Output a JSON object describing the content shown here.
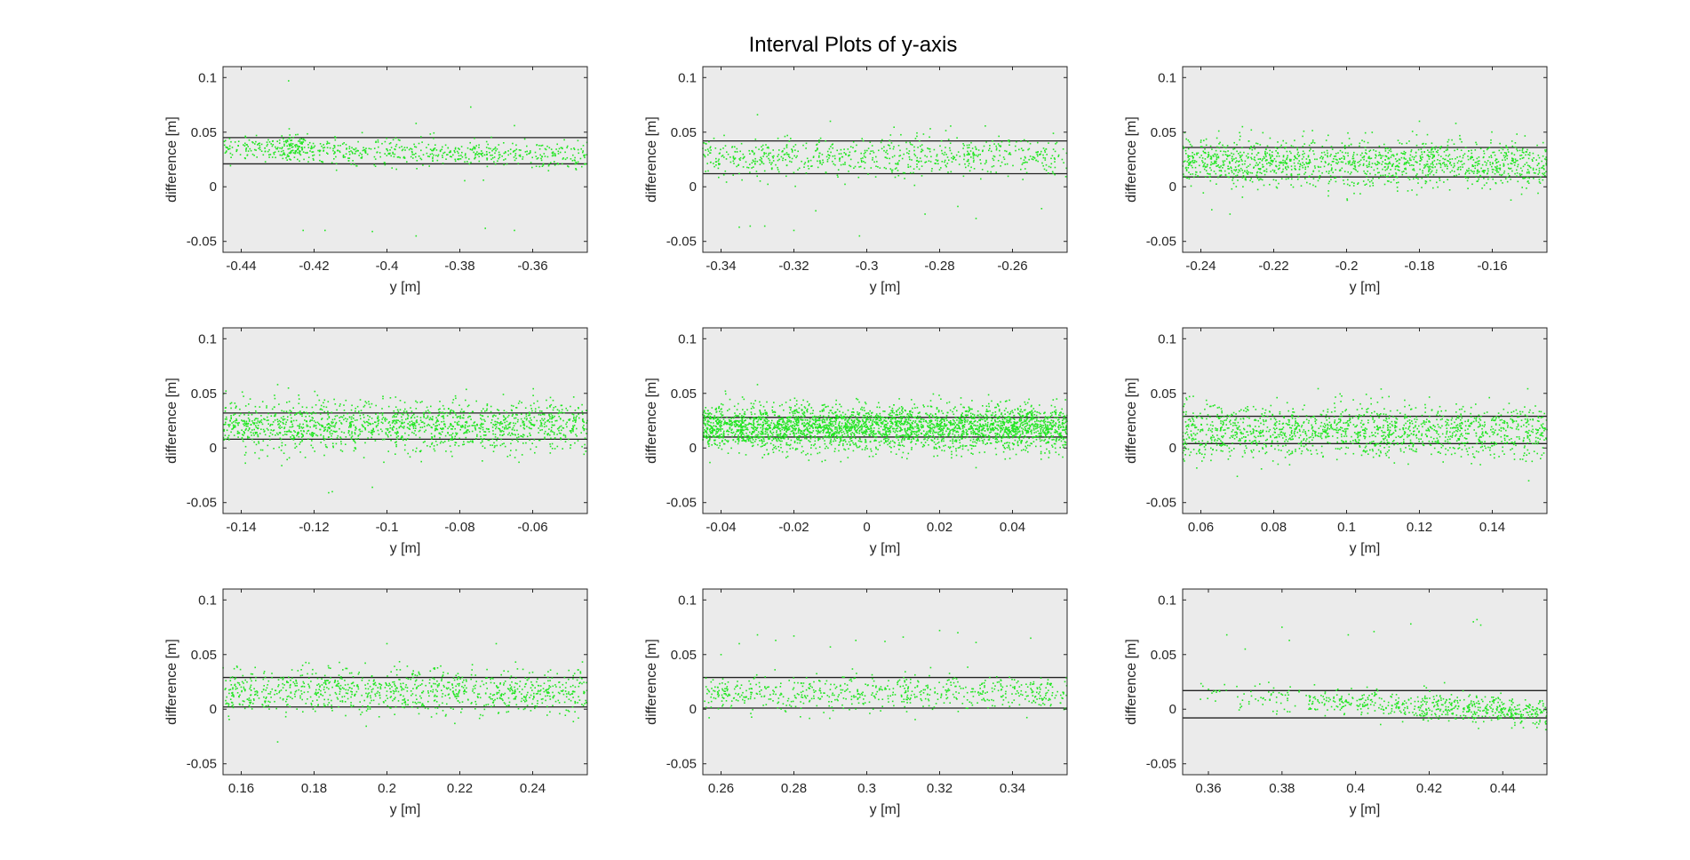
{
  "figure_title": "Interval Plots of y-axis",
  "colors": {
    "plot_background": "#ebebeb",
    "points": "#22e622",
    "band_lines": "#222222",
    "axis": "#262626"
  },
  "chart_data": [
    {
      "type": "scatter",
      "xlabel": "y [m]",
      "ylabel": "difference [m]",
      "xlim": [
        -0.445,
        -0.345
      ],
      "ylim": [
        -0.06,
        0.11
      ],
      "xticks": [
        -0.44,
        -0.42,
        -0.4,
        -0.38,
        -0.36
      ],
      "xtick_labels": [
        "-0.44",
        "-0.42",
        "-0.4",
        "-0.38",
        "-0.36"
      ],
      "yticks": [
        -0.05,
        0,
        0.05,
        0.1
      ],
      "ytick_labels": [
        "-0.05",
        "0",
        "0.05",
        "0.1"
      ],
      "band": [
        0.021,
        0.045
      ],
      "scatter": {
        "count": 650,
        "center_start": 0.036,
        "center_end": 0.028,
        "spread": 0.006,
        "x_density": "uniform"
      },
      "sparse_outliers": [
        [
          -0.427,
          0.097
        ],
        [
          -0.423,
          -0.04
        ],
        [
          -0.417,
          -0.04
        ],
        [
          -0.404,
          -0.041
        ],
        [
          -0.392,
          -0.045
        ],
        [
          -0.377,
          0.073
        ],
        [
          -0.373,
          -0.038
        ],
        [
          -0.365,
          -0.04
        ],
        [
          -0.392,
          0.058
        ],
        [
          -0.365,
          0.056
        ]
      ],
      "cluster": {
        "x": -0.426,
        "y": 0.038,
        "count": 70,
        "spread_x": 0.002,
        "spread_y": 0.005
      },
      "grid": false
    },
    {
      "type": "scatter",
      "xlabel": "y [m]",
      "ylabel": "difference [m]",
      "xlim": [
        -0.345,
        -0.245
      ],
      "ylim": [
        -0.06,
        0.11
      ],
      "xticks": [
        -0.34,
        -0.32,
        -0.3,
        -0.28,
        -0.26
      ],
      "xtick_labels": [
        "-0.34",
        "-0.32",
        "-0.3",
        "-0.28",
        "-0.26"
      ],
      "yticks": [
        -0.05,
        0,
        0.05,
        0.1
      ],
      "ytick_labels": [
        "-0.05",
        "0",
        "0.05",
        "0.1"
      ],
      "band": [
        0.012,
        0.042
      ],
      "scatter": {
        "count": 700,
        "center_start": 0.027,
        "center_end": 0.028,
        "spread": 0.009,
        "x_density": "uniform"
      },
      "sparse_outliers": [
        [
          -0.335,
          -0.037
        ],
        [
          -0.332,
          -0.036
        ],
        [
          -0.328,
          -0.036
        ],
        [
          -0.32,
          -0.04
        ],
        [
          -0.314,
          -0.022
        ],
        [
          -0.302,
          -0.045
        ],
        [
          -0.284,
          -0.025
        ],
        [
          -0.275,
          -0.018
        ],
        [
          -0.27,
          -0.029
        ],
        [
          -0.252,
          -0.02
        ],
        [
          -0.33,
          0.066
        ],
        [
          -0.31,
          0.06
        ]
      ],
      "grid": false
    },
    {
      "type": "scatter",
      "xlabel": "y [m]",
      "ylabel": "difference [m]",
      "xlim": [
        -0.245,
        -0.145
      ],
      "ylim": [
        -0.06,
        0.11
      ],
      "xticks": [
        -0.24,
        -0.22,
        -0.2,
        -0.18,
        -0.16
      ],
      "xtick_labels": [
        "-0.24",
        "-0.22",
        "-0.2",
        "-0.18",
        "-0.16"
      ],
      "yticks": [
        -0.05,
        0,
        0.05,
        0.1
      ],
      "ytick_labels": [
        "-0.05",
        "0",
        "0.05",
        "0.1"
      ],
      "band": [
        0.009,
        0.036
      ],
      "scatter": {
        "count": 1400,
        "center_start": 0.024,
        "center_end": 0.02,
        "spread": 0.011,
        "x_density": "uniform"
      },
      "sparse_outliers": [
        [
          -0.237,
          -0.021
        ],
        [
          -0.232,
          -0.025
        ],
        [
          -0.18,
          0.06
        ],
        [
          -0.17,
          0.058
        ]
      ],
      "grid": false
    },
    {
      "type": "scatter",
      "xlabel": "y [m]",
      "ylabel": "difference [m]",
      "xlim": [
        -0.145,
        -0.045
      ],
      "ylim": [
        -0.06,
        0.11
      ],
      "xticks": [
        -0.14,
        -0.12,
        -0.1,
        -0.08,
        -0.06
      ],
      "xtick_labels": [
        "-0.14",
        "-0.12",
        "-0.1",
        "-0.08",
        "-0.06"
      ],
      "yticks": [
        -0.05,
        0,
        0.05,
        0.1
      ],
      "ytick_labels": [
        "-0.05",
        "0",
        "0.05",
        "0.1"
      ],
      "band": [
        0.008,
        0.032
      ],
      "scatter": {
        "count": 1500,
        "center_start": 0.02,
        "center_end": 0.021,
        "spread": 0.011,
        "x_density": "uniform"
      },
      "sparse_outliers": [
        [
          -0.116,
          -0.041
        ],
        [
          -0.115,
          -0.04
        ],
        [
          -0.104,
          -0.036
        ],
        [
          -0.13,
          0.058
        ]
      ],
      "grid": false
    },
    {
      "type": "scatter",
      "xlabel": "y [m]",
      "ylabel": "difference [m]",
      "xlim": [
        -0.045,
        0.055
      ],
      "ylim": [
        -0.06,
        0.11
      ],
      "xticks": [
        -0.04,
        -0.02,
        0,
        0.02,
        0.04
      ],
      "xtick_labels": [
        "-0.04",
        "-0.02",
        "0",
        "0.02",
        "0.04"
      ],
      "yticks": [
        -0.05,
        0,
        0.05,
        0.1
      ],
      "ytick_labels": [
        "-0.05",
        "0",
        "0.05",
        "0.1"
      ],
      "band": [
        0.01,
        0.028
      ],
      "scatter": {
        "count": 3200,
        "center_start": 0.019,
        "center_end": 0.019,
        "spread": 0.01,
        "x_density": "uniform"
      },
      "sparse_outliers": [
        [
          -0.03,
          0.058
        ],
        [
          0.03,
          -0.018
        ]
      ],
      "grid": false
    },
    {
      "type": "scatter",
      "xlabel": "y [m]",
      "ylabel": "difference [m]",
      "xlim": [
        0.055,
        0.155
      ],
      "ylim": [
        -0.06,
        0.11
      ],
      "xticks": [
        0.06,
        0.08,
        0.1,
        0.12,
        0.14
      ],
      "xtick_labels": [
        "0.06",
        "0.08",
        "0.1",
        "0.12",
        "0.14"
      ],
      "yticks": [
        -0.05,
        0,
        0.05,
        0.1
      ],
      "ytick_labels": [
        "-0.05",
        "0",
        "0.05",
        "0.1"
      ],
      "band": [
        0.004,
        0.029
      ],
      "scatter": {
        "count": 1500,
        "center_start": 0.016,
        "center_end": 0.016,
        "spread": 0.012,
        "x_density": "uniform"
      },
      "sparse_outliers": [
        [
          0.07,
          -0.026
        ],
        [
          0.15,
          -0.03
        ]
      ],
      "grid": false
    },
    {
      "type": "scatter",
      "xlabel": "y [m]",
      "ylabel": "difference [m]",
      "xlim": [
        0.155,
        0.255
      ],
      "ylim": [
        -0.06,
        0.11
      ],
      "xticks": [
        0.16,
        0.18,
        0.2,
        0.22,
        0.24
      ],
      "xtick_labels": [
        "0.16",
        "0.18",
        "0.2",
        "0.22",
        "0.24"
      ],
      "yticks": [
        -0.05,
        0,
        0.05,
        0.1
      ],
      "ytick_labels": [
        "-0.05",
        "0",
        "0.05",
        "0.1"
      ],
      "band": [
        0.002,
        0.029
      ],
      "scatter": {
        "count": 1000,
        "center_start": 0.017,
        "center_end": 0.017,
        "spread": 0.01,
        "x_density": "uniform"
      },
      "sparse_outliers": [
        [
          0.2,
          0.06
        ],
        [
          0.23,
          0.06
        ],
        [
          0.17,
          -0.03
        ]
      ],
      "grid": false
    },
    {
      "type": "scatter",
      "xlabel": "y [m]",
      "ylabel": "difference [m]",
      "xlim": [
        0.255,
        0.355
      ],
      "ylim": [
        -0.06,
        0.11
      ],
      "xticks": [
        0.26,
        0.28,
        0.3,
        0.32,
        0.34
      ],
      "xtick_labels": [
        "0.26",
        "0.28",
        "0.3",
        "0.32",
        "0.34"
      ],
      "yticks": [
        -0.05,
        0,
        0.05,
        0.1
      ],
      "ytick_labels": [
        "-0.05",
        "0",
        "0.05",
        "0.1"
      ],
      "band": [
        0.001,
        0.029
      ],
      "scatter": {
        "count": 650,
        "center_start": 0.014,
        "center_end": 0.016,
        "spread": 0.008,
        "x_density": "uniform"
      },
      "sparse_outliers": [
        [
          0.265,
          0.06
        ],
        [
          0.27,
          0.068
        ],
        [
          0.275,
          0.063
        ],
        [
          0.28,
          0.067
        ],
        [
          0.29,
          0.057
        ],
        [
          0.297,
          0.063
        ],
        [
          0.305,
          0.062
        ],
        [
          0.31,
          0.066
        ],
        [
          0.32,
          0.072
        ],
        [
          0.325,
          0.07
        ],
        [
          0.33,
          0.061
        ],
        [
          0.345,
          0.065
        ],
        [
          0.26,
          0.05
        ]
      ],
      "grid": false
    },
    {
      "type": "scatter",
      "xlabel": "y [m]",
      "ylabel": "difference [m]",
      "xlim": [
        0.353,
        0.452
      ],
      "ylim": [
        -0.06,
        0.11
      ],
      "xticks": [
        0.36,
        0.38,
        0.4,
        0.42,
        0.44
      ],
      "xtick_labels": [
        "0.36",
        "0.38",
        "0.4",
        "0.42",
        "0.44"
      ],
      "yticks": [
        -0.05,
        0,
        0.05,
        0.1
      ],
      "ytick_labels": [
        "-0.05",
        "0",
        "0.05",
        "0.1"
      ],
      "band": [
        -0.008,
        0.017
      ],
      "scatter": {
        "count": 650,
        "center_start": 0.014,
        "center_end": -0.004,
        "spread": 0.006,
        "x_density": "increasing"
      },
      "sparse_outliers": [
        [
          0.365,
          0.068
        ],
        [
          0.38,
          0.075
        ],
        [
          0.382,
          0.063
        ],
        [
          0.398,
          0.068
        ],
        [
          0.405,
          0.071
        ],
        [
          0.415,
          0.078
        ],
        [
          0.432,
          0.08
        ],
        [
          0.434,
          0.077
        ],
        [
          0.433,
          0.082
        ],
        [
          0.37,
          0.055
        ]
      ],
      "grid": false
    }
  ]
}
